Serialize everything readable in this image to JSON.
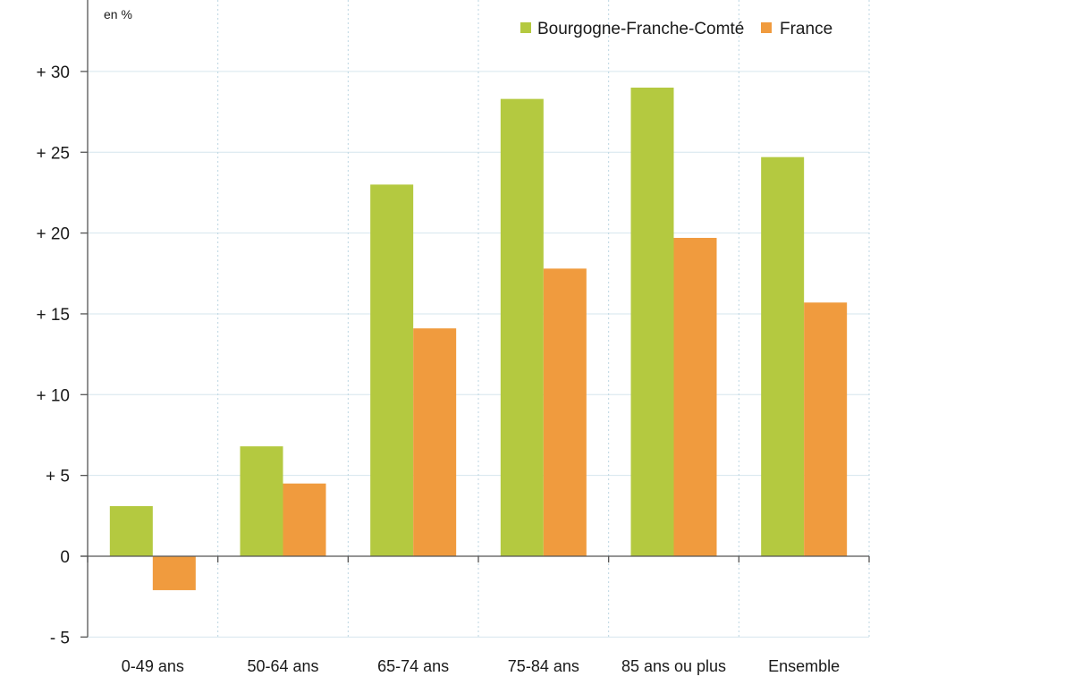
{
  "chart_data": {
    "type": "bar",
    "unit_label": "en %",
    "categories": [
      "0-49 ans",
      "50-64 ans",
      "65-74 ans",
      "75-84 ans",
      "85 ans ou plus",
      "Ensemble"
    ],
    "series": [
      {
        "name": "Bourgogne-Franche-Comté",
        "color": "#b4c940",
        "values": [
          3.1,
          6.8,
          23.0,
          28.3,
          29.0,
          24.7
        ]
      },
      {
        "name": "France",
        "color": "#f09b3e",
        "values": [
          -2.1,
          4.5,
          14.1,
          17.8,
          19.7,
          15.7
        ]
      }
    ],
    "yticks": [
      -5,
      0,
      5,
      10,
      15,
      20,
      25,
      30
    ],
    "ytick_labels": [
      "- 5",
      "0",
      "+ 5",
      "+ 10",
      "+ 15",
      "+ 20",
      "+ 25",
      "+ 30"
    ],
    "ylim": [
      -5,
      33
    ],
    "grid": true,
    "legend_position": "top-right"
  }
}
